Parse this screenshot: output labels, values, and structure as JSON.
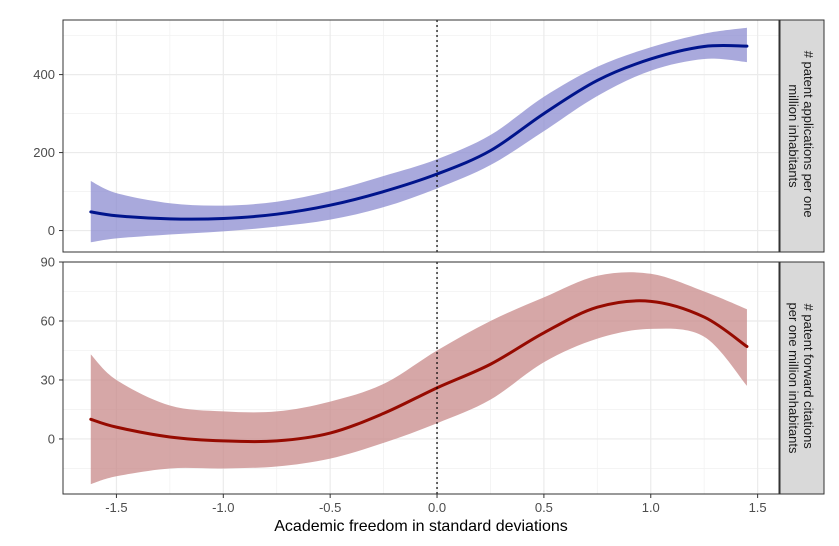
{
  "colors": {
    "series_top_line": "#00148c",
    "series_top_band": "#8c8cd0",
    "series_bottom_line": "#960a00",
    "series_bottom_band": "#c88a8a",
    "strip_fill": "#d9d9d9",
    "grid": "#ebebeb",
    "zero_line": "#000000"
  },
  "chart_data": [
    {
      "type": "line",
      "facet_label": [
        "# patent applications per one",
        "million inhabitants"
      ],
      "xlabel": "Academic freedom in standard deviations",
      "ylabel": "",
      "xlim": [
        -1.75,
        1.6
      ],
      "ylim": [
        -55,
        540
      ],
      "x_ticks": [
        -1.5,
        -1.0,
        -0.5,
        0.0,
        0.5,
        1.0,
        1.5
      ],
      "y_ticks": [
        0,
        200,
        400
      ],
      "reference_line_x": 0,
      "series": [
        {
          "line_color": "#00148c",
          "band_color": "#8c8cd0",
          "x": [
            -1.62,
            -1.5,
            -1.25,
            -1.0,
            -0.75,
            -0.5,
            -0.25,
            0.0,
            0.25,
            0.5,
            0.75,
            1.0,
            1.25,
            1.45
          ],
          "y": [
            48,
            38,
            30,
            31,
            42,
            65,
            100,
            145,
            205,
            300,
            385,
            440,
            472,
            473
          ],
          "lower": [
            -30,
            -20,
            -10,
            -2,
            10,
            28,
            60,
            108,
            168,
            255,
            345,
            410,
            440,
            432
          ],
          "upper": [
            127,
            96,
            70,
            64,
            74,
            101,
            140,
            183,
            245,
            343,
            420,
            470,
            505,
            520
          ]
        }
      ]
    },
    {
      "type": "line",
      "facet_label": [
        "# patent forward citations",
        "per one million inhabitants"
      ],
      "xlabel": "Academic freedom in standard deviations",
      "ylabel": "",
      "xlim": [
        -1.75,
        1.6
      ],
      "ylim": [
        -28,
        90
      ],
      "x_ticks": [
        -1.5,
        -1.0,
        -0.5,
        0.0,
        0.5,
        1.0,
        1.5
      ],
      "y_ticks": [
        0,
        30,
        60,
        90
      ],
      "reference_line_x": 0,
      "series": [
        {
          "line_color": "#960a00",
          "band_color": "#c88a8a",
          "x": [
            -1.62,
            -1.5,
            -1.25,
            -1.0,
            -0.75,
            -0.5,
            -0.25,
            0.0,
            0.25,
            0.5,
            0.75,
            1.0,
            1.25,
            1.45
          ],
          "y": [
            10,
            6,
            1,
            -1,
            -1,
            3,
            13,
            26,
            38,
            54,
            67,
            70,
            62,
            47
          ],
          "lower": [
            -23,
            -19,
            -15,
            -15,
            -14,
            -10,
            -2,
            8,
            20,
            39,
            51,
            56,
            52,
            27
          ],
          "upper": [
            43,
            30,
            17,
            14,
            14,
            19,
            28,
            45,
            60,
            72,
            83,
            84,
            75,
            66
          ]
        }
      ]
    }
  ]
}
